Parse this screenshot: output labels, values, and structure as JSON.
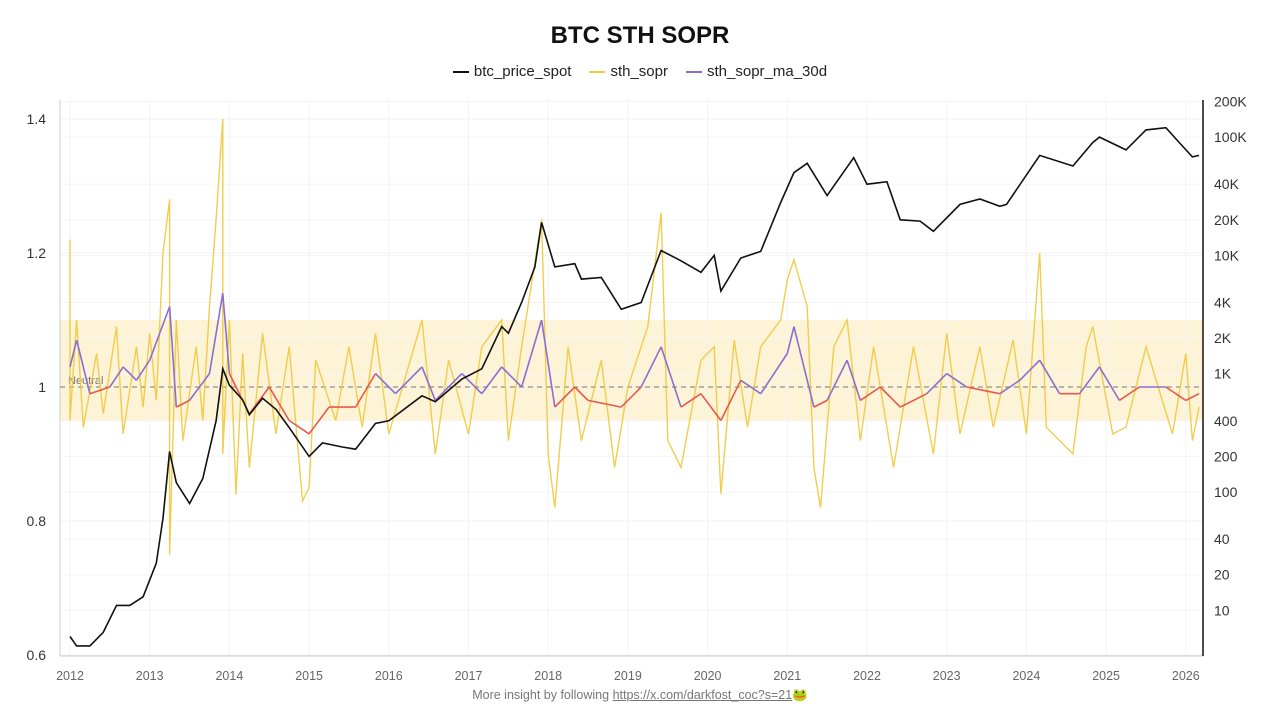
{
  "footer": {
    "text": "More insight by following ",
    "link": "https://x.com/darkfost_coc?s=21",
    "emoji": "🐸"
  },
  "chart_data": {
    "type": "line",
    "title": "BTC STH SOPR",
    "legend_position": "top-center",
    "grid": true,
    "left_axis": {
      "range": [
        0.6,
        1.42
      ],
      "ticks": [
        "0.6",
        "0.8",
        "1",
        "1.2",
        "1.4"
      ]
    },
    "right_axis": {
      "scale": "log",
      "range": [
        5,
        200000
      ],
      "ticks": [
        {
          "label": "10",
          "value": 10
        },
        {
          "label": "20",
          "value": 20
        },
        {
          "label": "40",
          "value": 40
        },
        {
          "label": "100",
          "value": 100
        },
        {
          "label": "200",
          "value": 200
        },
        {
          "label": "400",
          "value": 400
        },
        {
          "label": "1K",
          "value": 1000
        },
        {
          "label": "2K",
          "value": 2000
        },
        {
          "label": "4K",
          "value": 4000
        },
        {
          "label": "10K",
          "value": 10000
        },
        {
          "label": "20K",
          "value": 20000
        },
        {
          "label": "40K",
          "value": 40000
        },
        {
          "label": "100K",
          "value": 100000
        },
        {
          "label": "200K",
          "value": 200000
        }
      ]
    },
    "x_axis": {
      "range": [
        "2011-11",
        "2026-03"
      ],
      "ticks": [
        "2012",
        "2013",
        "2014",
        "2015",
        "2016",
        "2017",
        "2018",
        "2019",
        "2020",
        "2021",
        "2022",
        "2023",
        "2024",
        "2025",
        "2026"
      ]
    },
    "neutral_line": {
      "value": 1,
      "label": "Neutral"
    },
    "band": {
      "from": 0.95,
      "to": 1.1,
      "color": "#fdf3d6"
    },
    "colors": {
      "btc_price_spot": "#111111",
      "sth_sopr": "#f0c93c",
      "ma_above": "#8a6fd0",
      "ma_below": "#e8594a"
    },
    "series": [
      {
        "name": "btc_price_spot",
        "axis": "right",
        "points": [
          [
            "2012-01",
            6
          ],
          [
            "2012-02",
            5
          ],
          [
            "2012-04",
            5
          ],
          [
            "2012-06",
            6.5
          ],
          [
            "2012-08",
            11
          ],
          [
            "2012-10",
            11
          ],
          [
            "2012-12",
            13
          ],
          [
            "2013-02",
            25
          ],
          [
            "2013-03",
            60
          ],
          [
            "2013-04",
            220
          ],
          [
            "2013-05",
            120
          ],
          [
            "2013-07",
            80
          ],
          [
            "2013-09",
            130
          ],
          [
            "2013-11",
            400
          ],
          [
            "2013-12",
            1100
          ],
          [
            "2014-01",
            800
          ],
          [
            "2014-03",
            600
          ],
          [
            "2014-04",
            450
          ],
          [
            "2014-06",
            620
          ],
          [
            "2014-08",
            500
          ],
          [
            "2014-10",
            350
          ],
          [
            "2015-01",
            200
          ],
          [
            "2015-03",
            260
          ],
          [
            "2015-06",
            240
          ],
          [
            "2015-08",
            230
          ],
          [
            "2015-11",
            380
          ],
          [
            "2016-01",
            400
          ],
          [
            "2016-06",
            650
          ],
          [
            "2016-08",
            580
          ],
          [
            "2016-12",
            900
          ],
          [
            "2017-03",
            1100
          ],
          [
            "2017-06",
            2500
          ],
          [
            "2017-07",
            2200
          ],
          [
            "2017-09",
            4000
          ],
          [
            "2017-11",
            8000
          ],
          [
            "2017-12",
            19000
          ],
          [
            "2018-02",
            8000
          ],
          [
            "2018-05",
            8500
          ],
          [
            "2018-06",
            6300
          ],
          [
            "2018-09",
            6500
          ],
          [
            "2018-12",
            3500
          ],
          [
            "2019-03",
            4000
          ],
          [
            "2019-06",
            11000
          ],
          [
            "2019-09",
            9000
          ],
          [
            "2019-12",
            7200
          ],
          [
            "2020-02",
            10000
          ],
          [
            "2020-03",
            5000
          ],
          [
            "2020-06",
            9500
          ],
          [
            "2020-09",
            10800
          ],
          [
            "2020-12",
            28000
          ],
          [
            "2021-02",
            50000
          ],
          [
            "2021-04",
            60000
          ],
          [
            "2021-07",
            32000
          ],
          [
            "2021-11",
            67000
          ],
          [
            "2022-01",
            40000
          ],
          [
            "2022-04",
            42000
          ],
          [
            "2022-06",
            20000
          ],
          [
            "2022-09",
            19500
          ],
          [
            "2022-11",
            16000
          ],
          [
            "2023-03",
            27000
          ],
          [
            "2023-06",
            30000
          ],
          [
            "2023-09",
            26000
          ],
          [
            "2023-10",
            27000
          ],
          [
            "2024-03",
            70000
          ],
          [
            "2024-08",
            57000
          ],
          [
            "2024-11",
            90000
          ],
          [
            "2024-12",
            100000
          ],
          [
            "2025-04",
            78000
          ],
          [
            "2025-07",
            115000
          ],
          [
            "2025-10",
            120000
          ],
          [
            "2025-12",
            90000
          ],
          [
            "2026-02",
            68000
          ],
          [
            "2026-03",
            70000
          ]
        ]
      },
      {
        "name": "sth_sopr",
        "axis": "left",
        "points": [
          [
            "2012-01",
            1.22
          ],
          [
            "2012-01",
            0.95
          ],
          [
            "2012-02",
            1.1
          ],
          [
            "2012-03",
            0.94
          ],
          [
            "2012-05",
            1.05
          ],
          [
            "2012-06",
            0.96
          ],
          [
            "2012-08",
            1.09
          ],
          [
            "2012-09",
            0.93
          ],
          [
            "2012-11",
            1.06
          ],
          [
            "2012-12",
            0.97
          ],
          [
            "2013-01",
            1.08
          ],
          [
            "2013-02",
            0.98
          ],
          [
            "2013-03",
            1.2
          ],
          [
            "2013-04",
            1.28
          ],
          [
            "2013-04",
            0.75
          ],
          [
            "2013-05",
            1.1
          ],
          [
            "2013-06",
            0.92
          ],
          [
            "2013-08",
            1.06
          ],
          [
            "2013-09",
            0.95
          ],
          [
            "2013-10",
            1.12
          ],
          [
            "2013-11",
            1.25
          ],
          [
            "2013-12",
            1.4
          ],
          [
            "2013-12",
            0.9
          ],
          [
            "2014-01",
            1.1
          ],
          [
            "2014-02",
            0.84
          ],
          [
            "2014-03",
            1.05
          ],
          [
            "2014-04",
            0.88
          ],
          [
            "2014-06",
            1.08
          ],
          [
            "2014-08",
            0.93
          ],
          [
            "2014-10",
            1.06
          ],
          [
            "2014-12",
            0.83
          ],
          [
            "2015-01",
            0.85
          ],
          [
            "2015-02",
            1.04
          ],
          [
            "2015-05",
            0.95
          ],
          [
            "2015-07",
            1.06
          ],
          [
            "2015-09",
            0.94
          ],
          [
            "2015-11",
            1.08
          ],
          [
            "2016-01",
            0.93
          ],
          [
            "2016-06",
            1.1
          ],
          [
            "2016-08",
            0.9
          ],
          [
            "2016-10",
            1.04
          ],
          [
            "2017-01",
            0.93
          ],
          [
            "2017-03",
            1.06
          ],
          [
            "2017-06",
            1.1
          ],
          [
            "2017-07",
            0.92
          ],
          [
            "2017-09",
            1.06
          ],
          [
            "2017-12",
            1.25
          ],
          [
            "2018-01",
            0.9
          ],
          [
            "2018-02",
            0.82
          ],
          [
            "2018-04",
            1.06
          ],
          [
            "2018-06",
            0.92
          ],
          [
            "2018-09",
            1.04
          ],
          [
            "2018-11",
            0.88
          ],
          [
            "2019-01",
            1.0
          ],
          [
            "2019-04",
            1.09
          ],
          [
            "2019-06",
            1.26
          ],
          [
            "2019-07",
            0.92
          ],
          [
            "2019-09",
            0.88
          ],
          [
            "2019-12",
            1.04
          ],
          [
            "2020-02",
            1.06
          ],
          [
            "2020-03",
            0.84
          ],
          [
            "2020-05",
            1.07
          ],
          [
            "2020-07",
            0.94
          ],
          [
            "2020-09",
            1.06
          ],
          [
            "2020-12",
            1.1
          ],
          [
            "2021-01",
            1.16
          ],
          [
            "2021-02",
            1.19
          ],
          [
            "2021-04",
            1.12
          ],
          [
            "2021-05",
            0.88
          ],
          [
            "2021-06",
            0.82
          ],
          [
            "2021-08",
            1.06
          ],
          [
            "2021-10",
            1.1
          ],
          [
            "2021-12",
            0.92
          ],
          [
            "2022-02",
            1.06
          ],
          [
            "2022-05",
            0.88
          ],
          [
            "2022-08",
            1.06
          ],
          [
            "2022-11",
            0.9
          ],
          [
            "2023-01",
            1.08
          ],
          [
            "2023-03",
            0.93
          ],
          [
            "2023-06",
            1.06
          ],
          [
            "2023-08",
            0.94
          ],
          [
            "2023-11",
            1.07
          ],
          [
            "2024-01",
            0.93
          ],
          [
            "2024-03",
            1.2
          ],
          [
            "2024-04",
            0.94
          ],
          [
            "2024-08",
            0.9
          ],
          [
            "2024-10",
            1.06
          ],
          [
            "2024-11",
            1.09
          ],
          [
            "2025-02",
            0.93
          ],
          [
            "2025-04",
            0.94
          ],
          [
            "2025-07",
            1.06
          ],
          [
            "2025-11",
            0.93
          ],
          [
            "2026-01",
            1.05
          ],
          [
            "2026-02",
            0.92
          ],
          [
            "2026-03",
            0.97
          ]
        ]
      },
      {
        "name": "sth_sopr_ma_30d",
        "axis": "left",
        "points": [
          [
            "2012-01",
            1.03
          ],
          [
            "2012-02",
            1.07
          ],
          [
            "2012-04",
            0.99
          ],
          [
            "2012-07",
            1.0
          ],
          [
            "2012-09",
            1.03
          ],
          [
            "2012-11",
            1.01
          ],
          [
            "2013-01",
            1.04
          ],
          [
            "2013-04",
            1.12
          ],
          [
            "2013-05",
            0.97
          ],
          [
            "2013-07",
            0.98
          ],
          [
            "2013-10",
            1.02
          ],
          [
            "2013-12",
            1.14
          ],
          [
            "2014-01",
            1.02
          ],
          [
            "2014-04",
            0.96
          ],
          [
            "2014-07",
            1.0
          ],
          [
            "2014-10",
            0.95
          ],
          [
            "2015-01",
            0.93
          ],
          [
            "2015-04",
            0.97
          ],
          [
            "2015-08",
            0.97
          ],
          [
            "2015-11",
            1.02
          ],
          [
            "2016-02",
            0.99
          ],
          [
            "2016-06",
            1.03
          ],
          [
            "2016-08",
            0.98
          ],
          [
            "2016-12",
            1.02
          ],
          [
            "2017-03",
            0.99
          ],
          [
            "2017-06",
            1.03
          ],
          [
            "2017-09",
            1.0
          ],
          [
            "2017-12",
            1.1
          ],
          [
            "2018-02",
            0.97
          ],
          [
            "2018-05",
            1.0
          ],
          [
            "2018-07",
            0.98
          ],
          [
            "2018-12",
            0.97
          ],
          [
            "2019-03",
            1.0
          ],
          [
            "2019-06",
            1.06
          ],
          [
            "2019-09",
            0.97
          ],
          [
            "2019-12",
            0.99
          ],
          [
            "2020-03",
            0.95
          ],
          [
            "2020-06",
            1.01
          ],
          [
            "2020-09",
            0.99
          ],
          [
            "2021-01",
            1.05
          ],
          [
            "2021-02",
            1.09
          ],
          [
            "2021-05",
            0.97
          ],
          [
            "2021-07",
            0.98
          ],
          [
            "2021-10",
            1.04
          ],
          [
            "2021-12",
            0.98
          ],
          [
            "2022-03",
            1.0
          ],
          [
            "2022-06",
            0.97
          ],
          [
            "2022-10",
            0.99
          ],
          [
            "2023-01",
            1.02
          ],
          [
            "2023-04",
            1.0
          ],
          [
            "2023-09",
            0.99
          ],
          [
            "2023-12",
            1.01
          ],
          [
            "2024-03",
            1.04
          ],
          [
            "2024-06",
            0.99
          ],
          [
            "2024-09",
            0.99
          ],
          [
            "2024-12",
            1.03
          ],
          [
            "2025-03",
            0.98
          ],
          [
            "2025-06",
            1.0
          ],
          [
            "2025-10",
            1.0
          ],
          [
            "2026-01",
            0.98
          ],
          [
            "2026-03",
            0.99
          ]
        ]
      }
    ]
  }
}
